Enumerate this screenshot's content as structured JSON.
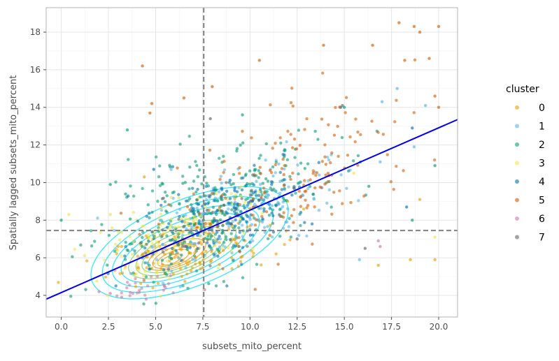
{
  "chart_data": {
    "type": "scatter",
    "xlabel": "subsets_mito_percent",
    "ylabel": "Spatially lagged subsets_mito_percent",
    "xlim": [
      -0.8,
      21.0
    ],
    "ylim": [
      2.85,
      19.3
    ],
    "x_ticks": [
      "0.0",
      "2.5",
      "5.0",
      "7.5",
      "10.0",
      "12.5",
      "15.0",
      "17.5",
      "20.0"
    ],
    "y_ticks": [
      "4",
      "6",
      "8",
      "10",
      "12",
      "14",
      "16",
      "18"
    ],
    "x_tick_values": [
      0,
      2.5,
      5,
      7.5,
      10,
      12.5,
      15,
      17.5,
      20
    ],
    "y_tick_values": [
      4,
      6,
      8,
      10,
      12,
      14,
      16,
      18
    ],
    "grid": true,
    "mean_x": 7.55,
    "mean_y": 7.45,
    "regression": {
      "x": [
        -0.8,
        21.0
      ],
      "y": [
        3.8,
        13.35
      ],
      "color": "#0000ee"
    },
    "density_center": [
      6.8,
      6.8
    ],
    "density_color": "#00e5ff",
    "legend": {
      "title": "cluster",
      "placement": "right",
      "entries": [
        {
          "label": "0",
          "color": "#E69F00"
        },
        {
          "label": "1",
          "color": "#56B4E9"
        },
        {
          "label": "2",
          "color": "#009E73"
        },
        {
          "label": "3",
          "color": "#F0E442"
        },
        {
          "label": "4",
          "color": "#0072B2"
        },
        {
          "label": "5",
          "color": "#D55E00"
        },
        {
          "label": "6",
          "color": "#CC79A7"
        },
        {
          "label": "7",
          "color": "#666666"
        }
      ]
    },
    "series": [
      {
        "cluster": "0",
        "center": [
          7.0,
          6.4
        ],
        "spread": [
          2.2,
          0.9
        ],
        "count": 170,
        "outliers": [
          [
            18.5,
            5.9
          ],
          [
            19.0,
            9.1
          ],
          [
            16.8,
            5.6
          ],
          [
            19.8,
            5.9
          ],
          [
            4.4,
            10.3
          ],
          [
            12.0,
            9.0
          ]
        ]
      },
      {
        "cluster": "1",
        "center": [
          9.0,
          8.3
        ],
        "spread": [
          2.6,
          1.5
        ],
        "count": 190,
        "outliers": [
          [
            17.0,
            14.3
          ],
          [
            17.8,
            15.0
          ],
          [
            16.9,
            11.1
          ],
          [
            19.3,
            14.1
          ],
          [
            15.8,
            5.9
          ],
          [
            18.7,
            11.9
          ]
        ]
      },
      {
        "cluster": "2",
        "center": [
          8.0,
          8.4
        ],
        "spread": [
          3.0,
          1.8
        ],
        "count": 320,
        "outliers": [
          [
            0.0,
            8.0
          ],
          [
            3.5,
            12.8
          ],
          [
            2.6,
            9.9
          ],
          [
            9.6,
            13.6
          ],
          [
            15.0,
            14.0
          ],
          [
            19.8,
            10.9
          ],
          [
            18.6,
            8.0
          ],
          [
            16.3,
            9.8
          ]
        ]
      },
      {
        "cluster": "3",
        "center": [
          6.0,
          7.2
        ],
        "spread": [
          2.2,
          1.1
        ],
        "count": 120,
        "outliers": [
          [
            0.4,
            8.3
          ],
          [
            2.6,
            8.3
          ],
          [
            19.8,
            7.1
          ],
          [
            15.5,
            10.5
          ]
        ]
      },
      {
        "cluster": "4",
        "center": [
          8.6,
          8.4
        ],
        "spread": [
          2.4,
          1.4
        ],
        "count": 160,
        "outliers": [
          [
            14.8,
            14.0
          ],
          [
            18.3,
            8.7
          ],
          [
            18.6,
            12.9
          ],
          [
            4.9,
            10.7
          ]
        ]
      },
      {
        "cluster": "5",
        "center": [
          12.8,
          10.4
        ],
        "spread": [
          3.2,
          2.2
        ],
        "count": 150,
        "outliers": [
          [
            17.9,
            18.5
          ],
          [
            18.7,
            18.3
          ],
          [
            19.0,
            18.0
          ],
          [
            20.0,
            18.3
          ],
          [
            16.5,
            17.3
          ],
          [
            13.9,
            17.3
          ],
          [
            10.5,
            16.5
          ],
          [
            4.3,
            16.2
          ],
          [
            4.8,
            14.2
          ],
          [
            4.7,
            13.7
          ],
          [
            6.5,
            14.5
          ],
          [
            8.0,
            15.1
          ],
          [
            18.2,
            16.5
          ],
          [
            19.5,
            16.6
          ],
          [
            20.0,
            14.0
          ],
          [
            19.8,
            14.6
          ]
        ]
      },
      {
        "cluster": "6",
        "center": [
          4.3,
          4.5
        ],
        "spread": [
          0.9,
          0.35
        ],
        "count": 26,
        "outliers": [
          [
            2.0,
            4.2
          ],
          [
            2.6,
            4.1
          ],
          [
            3.2,
            3.9
          ],
          [
            4.5,
            3.8
          ],
          [
            16.8,
            6.9
          ],
          [
            16.9,
            6.6
          ],
          [
            7.6,
            4.3
          ]
        ]
      },
      {
        "cluster": "7",
        "center": [
          7.8,
          8.0
        ],
        "spread": [
          2.2,
          1.2
        ],
        "count": 50,
        "outliers": [
          [
            7.9,
            13.4
          ],
          [
            14.9,
            14.1
          ],
          [
            16.1,
            6.5
          ],
          [
            12.5,
            7.0
          ]
        ]
      }
    ]
  }
}
